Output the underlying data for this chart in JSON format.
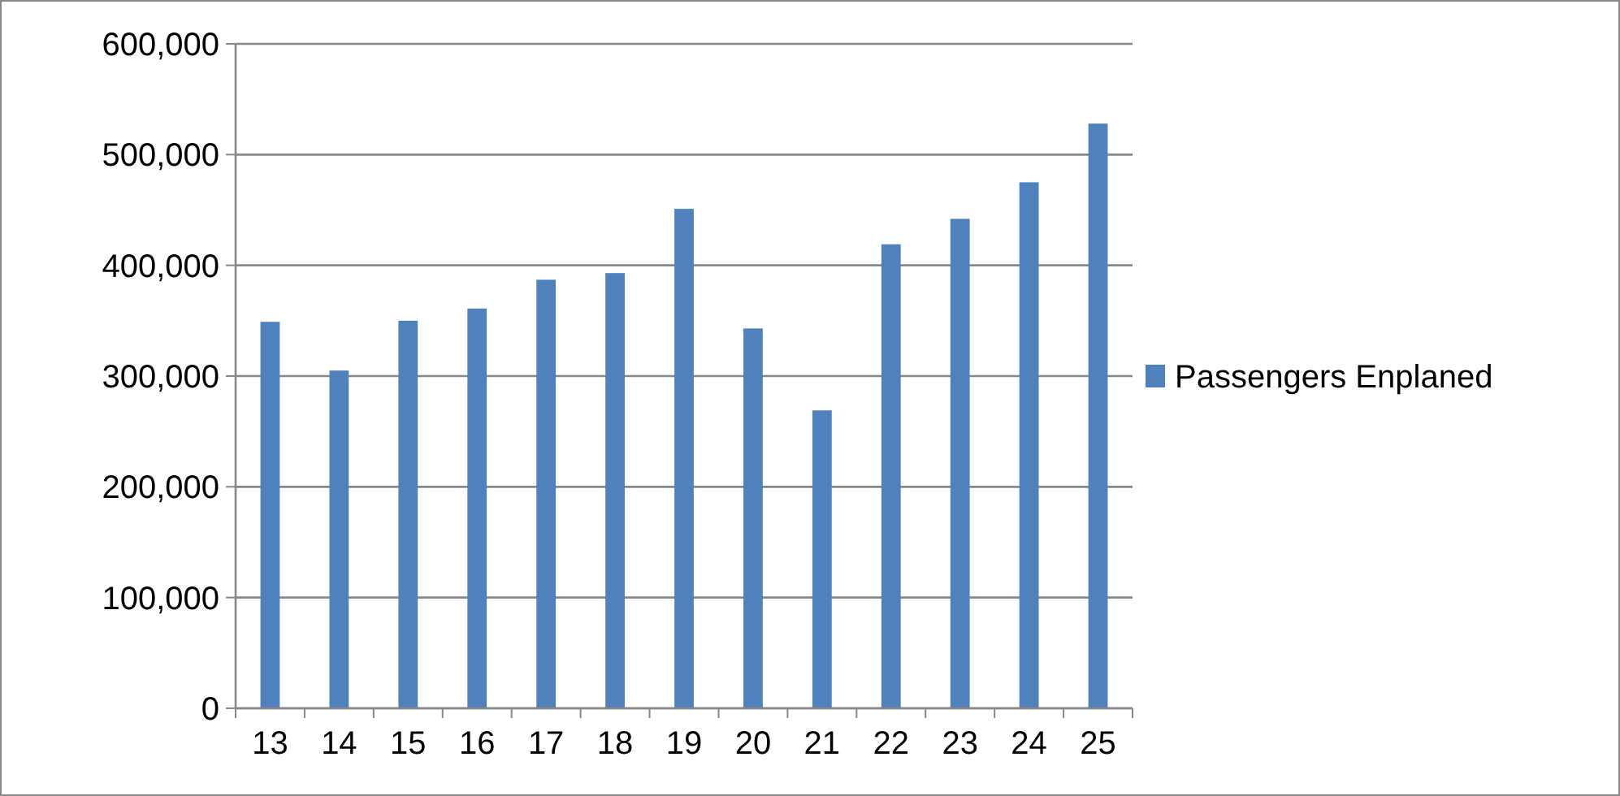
{
  "chart_data": {
    "type": "bar",
    "categories": [
      "13",
      "14",
      "15",
      "16",
      "17",
      "18",
      "19",
      "20",
      "21",
      "22",
      "23",
      "24",
      "25"
    ],
    "series": [
      {
        "name": "Passengers Enplaned",
        "color": "#4f81bd",
        "values": [
          349000,
          305000,
          350000,
          361000,
          387000,
          393000,
          451000,
          343000,
          269000,
          419000,
          442000,
          475000,
          528000
        ]
      }
    ],
    "ylim": [
      0,
      600000
    ],
    "yticks": [
      {
        "value": 0,
        "label": "0"
      },
      {
        "value": 100000,
        "label": "100,000"
      },
      {
        "value": 200000,
        "label": "200,000"
      },
      {
        "value": 300000,
        "label": "300,000"
      },
      {
        "value": 400000,
        "label": "400,000"
      },
      {
        "value": 500000,
        "label": "500,000"
      },
      {
        "value": 600000,
        "label": "600,000"
      }
    ],
    "grid": "y",
    "legend": "right"
  }
}
